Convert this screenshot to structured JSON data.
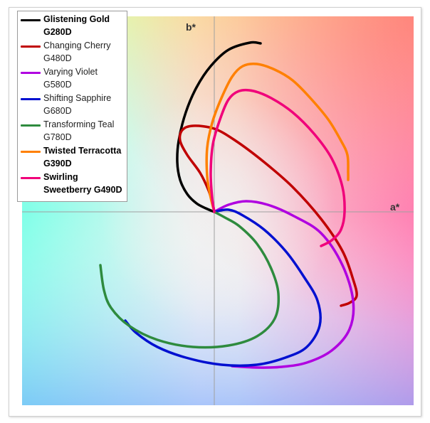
{
  "chart_data": {
    "type": "line",
    "title": "",
    "xlabel": "a*",
    "ylabel": "b*",
    "grid": false,
    "background": "CIELAB a*b* color plane gradient",
    "legend_position": "top-left",
    "series": [
      {
        "name": "Glistening Gold\nG280D",
        "color": "#000000",
        "bold": true,
        "points": [
          [
            0,
            0
          ],
          [
            -12,
            5
          ],
          [
            -25,
            12
          ],
          [
            -38,
            25
          ],
          [
            -48,
            45
          ],
          [
            -52,
            70
          ],
          [
            -50,
            100
          ],
          [
            -40,
            140
          ],
          [
            -25,
            175
          ],
          [
            -5,
            205
          ],
          [
            20,
            228
          ],
          [
            50,
            238
          ],
          [
            65,
            237
          ]
        ]
      },
      {
        "name": "Changing Cherry\nG480D",
        "color": "#c00000",
        "bold": false,
        "points": [
          [
            0,
            0
          ],
          [
            -2,
            10
          ],
          [
            -8,
            30
          ],
          [
            -20,
            55
          ],
          [
            -38,
            80
          ],
          [
            -48,
            100
          ],
          [
            -45,
            115
          ],
          [
            -30,
            121
          ],
          [
            0,
            117
          ],
          [
            30,
            100
          ],
          [
            70,
            70
          ],
          [
            110,
            35
          ],
          [
            150,
            -10
          ],
          [
            180,
            -55
          ],
          [
            195,
            -95
          ],
          [
            200,
            -118
          ],
          [
            190,
            -128
          ],
          [
            178,
            -132
          ]
        ]
      },
      {
        "name": "Varying Violet\nG580D",
        "color": "#b000e0",
        "bold": false,
        "points": [
          [
            0,
            0
          ],
          [
            20,
            10
          ],
          [
            45,
            15
          ],
          [
            75,
            10
          ],
          [
            110,
            -5
          ],
          [
            150,
            -30
          ],
          [
            180,
            -75
          ],
          [
            195,
            -125
          ],
          [
            190,
            -165
          ],
          [
            165,
            -195
          ],
          [
            130,
            -212
          ],
          [
            95,
            -218
          ],
          [
            60,
            -219
          ],
          [
            25,
            -217
          ]
        ]
      },
      {
        "name": "Shifting Sapphire\nG680D",
        "color": "#0010d0",
        "bold": false,
        "points": [
          [
            0,
            0
          ],
          [
            20,
            3
          ],
          [
            40,
            -5
          ],
          [
            70,
            -25
          ],
          [
            100,
            -55
          ],
          [
            125,
            -90
          ],
          [
            145,
            -125
          ],
          [
            148,
            -160
          ],
          [
            130,
            -190
          ],
          [
            100,
            -205
          ],
          [
            60,
            -215
          ],
          [
            10,
            -215
          ],
          [
            -40,
            -205
          ],
          [
            -80,
            -190
          ],
          [
            -110,
            -170
          ],
          [
            -125,
            -153
          ]
        ]
      },
      {
        "name": "Transforming Teal\nG780D",
        "color": "#2e8b3e",
        "bold": false,
        "points": [
          [
            0,
            0
          ],
          [
            15,
            -8
          ],
          [
            35,
            -20
          ],
          [
            60,
            -45
          ],
          [
            80,
            -80
          ],
          [
            90,
            -115
          ],
          [
            85,
            -150
          ],
          [
            60,
            -175
          ],
          [
            20,
            -188
          ],
          [
            -30,
            -190
          ],
          [
            -80,
            -180
          ],
          [
            -120,
            -160
          ],
          [
            -145,
            -135
          ],
          [
            -155,
            -110
          ],
          [
            -160,
            -75
          ]
        ]
      },
      {
        "name": "Twisted Terracotta\nG390D",
        "color": "#ff8000",
        "bold": true,
        "points": [
          [
            0,
            0
          ],
          [
            -5,
            20
          ],
          [
            -10,
            50
          ],
          [
            -10,
            90
          ],
          [
            -3,
            125
          ],
          [
            10,
            160
          ],
          [
            25,
            190
          ],
          [
            40,
            205
          ],
          [
            60,
            208
          ],
          [
            85,
            200
          ],
          [
            110,
            185
          ],
          [
            135,
            160
          ],
          [
            160,
            130
          ],
          [
            178,
            100
          ],
          [
            187,
            80
          ],
          [
            188,
            55
          ],
          [
            188,
            45
          ]
        ]
      },
      {
        "name": "Swirling\nSweetberry G490D",
        "color": "#f0007a",
        "bold": true,
        "points": [
          [
            0,
            0
          ],
          [
            -3,
            20
          ],
          [
            -5,
            55
          ],
          [
            -2,
            95
          ],
          [
            8,
            130
          ],
          [
            20,
            158
          ],
          [
            35,
            170
          ],
          [
            55,
            170
          ],
          [
            80,
            160
          ],
          [
            110,
            140
          ],
          [
            140,
            110
          ],
          [
            165,
            75
          ],
          [
            180,
            35
          ],
          [
            183,
            0
          ],
          [
            178,
            -25
          ],
          [
            165,
            -40
          ],
          [
            150,
            -48
          ]
        ]
      }
    ]
  }
}
